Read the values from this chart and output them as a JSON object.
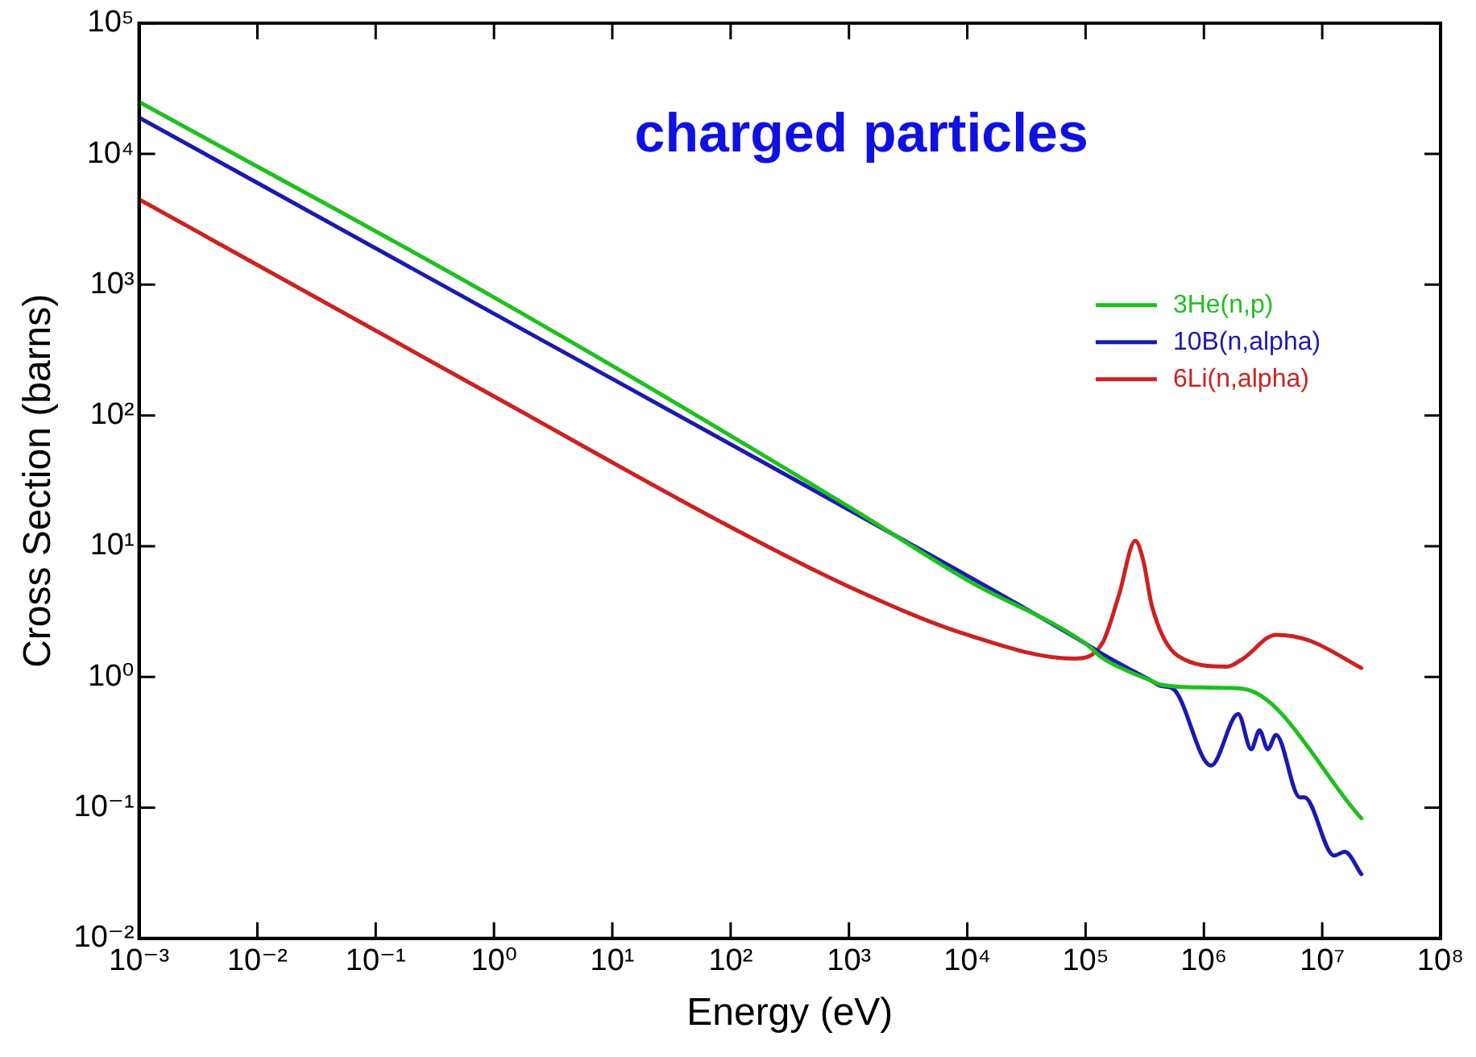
{
  "chart_data": {
    "type": "line",
    "title": "charged particles",
    "xlabel": "Energy (eV)",
    "ylabel": "Cross Section (barns)",
    "log": "xy",
    "grid": false,
    "legend": "top right",
    "marker": "none",
    "line_style": "solid",
    "xlim": [
      0.001,
      100000000
    ],
    "ylim": [
      0.01,
      100000
    ],
    "xticks": [
      {
        "value": 0.001,
        "label": "10⁻³"
      },
      {
        "value": 0.01,
        "label": "10⁻²"
      },
      {
        "value": 0.1,
        "label": "10⁻¹"
      },
      {
        "value": 1,
        "label": "10⁰"
      },
      {
        "value": 10,
        "label": "10¹"
      },
      {
        "value": 100,
        "label": "10²"
      },
      {
        "value": 1000,
        "label": "10³"
      },
      {
        "value": 10000,
        "label": "10⁴"
      },
      {
        "value": 100000,
        "label": "10⁵"
      },
      {
        "value": 1000000,
        "label": "10⁶"
      },
      {
        "value": 10000000,
        "label": "10⁷"
      },
      {
        "value": 100000000,
        "label": "10⁸"
      }
    ],
    "yticks": [
      {
        "value": 0.01,
        "label": "10⁻²"
      },
      {
        "value": 0.1,
        "label": "10⁻¹"
      },
      {
        "value": 1,
        "label": "10⁰"
      },
      {
        "value": 10,
        "label": "10¹"
      },
      {
        "value": 100,
        "label": "10²"
      },
      {
        "value": 1000,
        "label": "10³"
      },
      {
        "value": 10000,
        "label": "10⁴"
      },
      {
        "value": 100000,
        "label": "10⁵"
      }
    ],
    "series": [
      {
        "name": "3He(n,p)",
        "color": "#1fbf1f",
        "x": [
          0.001,
          1,
          1000,
          10000,
          100000,
          138000,
          363000,
          437000,
          1000000,
          2140000,
          21400000
        ],
        "values": [
          25000,
          800,
          20,
          5.5,
          1.8,
          1.4,
          0.93,
          0.87,
          0.83,
          0.81,
          0.083
        ]
      },
      {
        "name": "10B(n,alpha)",
        "color": "#1a1ab0",
        "x": [
          0.001,
          1,
          1000,
          100000,
          138000,
          363000,
          437000,
          550000,
          1150000,
          1950000,
          2510000,
          2950000,
          3470000,
          4070000,
          6460000,
          7080000,
          12600000,
          15500000,
          21400000
        ],
        "values": [
          19000,
          600,
          19,
          1.8,
          1.5,
          0.93,
          0.85,
          0.81,
          0.21,
          0.52,
          0.28,
          0.39,
          0.28,
          0.36,
          0.12,
          0.12,
          0.043,
          0.046,
          0.031
        ]
      },
      {
        "name": "6Li(n,alpha)",
        "color": "#cc2222",
        "x": [
          0.001,
          1,
          100,
          1000,
          10000,
          80000,
          138000,
          191000,
          263000,
          309000,
          363000,
          603000,
          1580000,
          2140000,
          4070000,
          7760000,
          21400000
        ],
        "values": [
          4500,
          140,
          14,
          4.9,
          2.1,
          1.38,
          1.8,
          4.2,
          11,
          7.6,
          3.5,
          1.45,
          1.2,
          1.38,
          2.1,
          1.9,
          1.17
        ]
      }
    ]
  }
}
